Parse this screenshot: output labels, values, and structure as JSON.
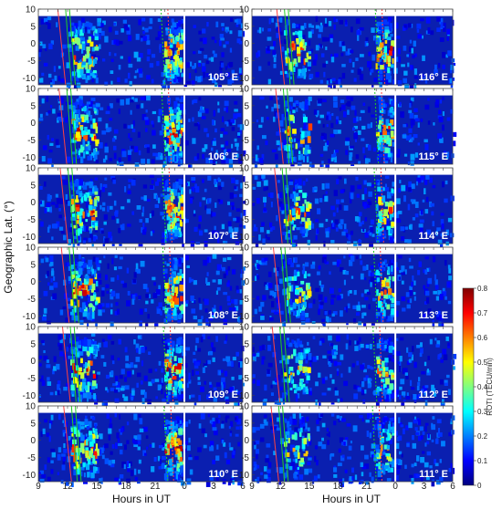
{
  "chart_data": {
    "type": "heatmap",
    "title": "",
    "xlabel": "Hours in UT",
    "ylabel": "Geographic Lat. (°)",
    "x_ticks": [
      "9",
      "12",
      "15",
      "18",
      "21",
      "0",
      "3",
      "6"
    ],
    "y_ticks": [
      "10",
      "5",
      "0",
      "-5",
      "-10"
    ],
    "ylim": [
      -12,
      10
    ],
    "colorbar": {
      "label": "ROTI (TECU/min)",
      "ticks": [
        "0",
        "0.1",
        "0.2",
        "0.3",
        "0.4",
        "0.5",
        "0.6",
        "0.7",
        "0.8"
      ],
      "range": [
        0,
        0.8
      ],
      "colormap": "jet"
    },
    "panels": [
      {
        "label": "105° E",
        "column": "left",
        "row": 1
      },
      {
        "label": "106° E",
        "column": "left",
        "row": 2
      },
      {
        "label": "107° E",
        "column": "left",
        "row": 3
      },
      {
        "label": "108° E",
        "column": "left",
        "row": 4
      },
      {
        "label": "109° E",
        "column": "left",
        "row": 5
      },
      {
        "label": "110° E",
        "column": "left",
        "row": 6
      },
      {
        "label": "116° E",
        "column": "right",
        "row": 1
      },
      {
        "label": "115° E",
        "column": "right",
        "row": 2
      },
      {
        "label": "114° E",
        "column": "right",
        "row": 3
      },
      {
        "label": "113° E",
        "column": "right",
        "row": 4
      },
      {
        "label": "112° E",
        "column": "right",
        "row": 5
      },
      {
        "label": "111° E",
        "column": "right",
        "row": 6
      }
    ],
    "colors": {
      "low": "#00008f",
      "mid": "#0050ff",
      "cyan": "#00ffff",
      "yellow": "#ffff00",
      "high": "#800000",
      "terminator_red": "#ff4040",
      "terminator_green": "#22cc22",
      "midnight_line": "#ffffff"
    }
  }
}
